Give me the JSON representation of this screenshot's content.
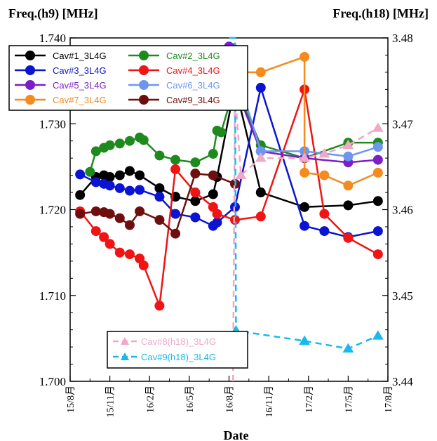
{
  "chart_data": {
    "type": "line",
    "title": "",
    "ylabel_left": "Freq.(h9)  [MHz]",
    "ylabel_right": "Freq.(h18)  [MHz]",
    "xlabel": "Date",
    "x_ticks": [
      "15/8月",
      "15/11月",
      "16/2月",
      "16/5月",
      "16/8月",
      "16/11月",
      "17/2月",
      "17/5月",
      "17/8月"
    ],
    "x_range": [
      "2015-08",
      "2017-08"
    ],
    "ylim_left": [
      1.7,
      1.74
    ],
    "yticks_left": [
      "1.700",
      "1.710",
      "1.720",
      "1.730",
      "1.740"
    ],
    "ylim_right": [
      3.44,
      3.48
    ],
    "yticks_right": [
      "3.44",
      "3.45",
      "3.46",
      "3.47",
      "3.48"
    ],
    "legend_top": {
      "position": "top-left"
    },
    "legend_bottom": {
      "position": "bottom-center"
    },
    "series": [
      {
        "name": "Cav#1_3L4G",
        "axis": "left",
        "color": "#000000",
        "marker": "circle",
        "dashed": false,
        "x": [
          0.5,
          1.3,
          1.7,
          2.0,
          2.5,
          3.0,
          3.5,
          4.5,
          5.3,
          6.3,
          7.2,
          7.4,
          8.3,
          9.6,
          11.8,
          14.0,
          15.5
        ],
        "y": [
          1.7217,
          1.7238,
          1.724,
          1.7238,
          1.724,
          1.7245,
          1.724,
          1.7225,
          1.7215,
          1.721,
          1.7218,
          1.7238,
          1.7345,
          1.722,
          1.7203,
          1.7205,
          1.721
        ]
      },
      {
        "name": "Cav#2_3L4G",
        "axis": "left",
        "color": "#1e8a1e",
        "marker": "circle",
        "dashed": false,
        "x": [
          1.0,
          1.3,
          1.7,
          2.0,
          2.5,
          3.0,
          3.5,
          3.7,
          4.5,
          5.3,
          6.3,
          7.2,
          7.4,
          7.6,
          8.3,
          9.6,
          11.8,
          14.0,
          15.5
        ],
        "y": [
          1.7244,
          1.7268,
          1.7272,
          1.7275,
          1.7277,
          1.728,
          1.7284,
          1.7281,
          1.7263,
          1.7258,
          1.7255,
          1.7265,
          1.7292,
          1.729,
          1.7345,
          1.7275,
          1.726,
          1.7278,
          1.7278
        ]
      },
      {
        "name": "Cav#3_3L4G",
        "axis": "left",
        "color": "#0a14d2",
        "marker": "circle",
        "dashed": false,
        "x": [
          0.5,
          1.3,
          1.7,
          2.0,
          2.5,
          3.0,
          3.5,
          4.5,
          5.3,
          6.3,
          7.2,
          7.4,
          8.3,
          9.6,
          11.8,
          12.8,
          14.0,
          15.5
        ],
        "y": [
          1.7241,
          1.7232,
          1.723,
          1.7228,
          1.7225,
          1.7222,
          1.7223,
          1.7215,
          1.7195,
          1.7191,
          1.7181,
          1.7185,
          1.7203,
          1.7342,
          1.7181,
          1.7175,
          1.7168,
          1.7175
        ]
      },
      {
        "name": "Cav#4_3L4G",
        "axis": "left",
        "color": "#f01414",
        "marker": "circle",
        "dashed": false,
        "x": [
          0.5,
          1.3,
          1.7,
          2.0,
          2.5,
          3.0,
          3.5,
          3.7,
          4.5,
          5.3,
          6.3,
          7.2,
          7.4,
          8.3,
          9.6,
          11.8,
          12.8,
          14.0,
          15.5
        ],
        "y": [
          1.7198,
          1.7175,
          1.7168,
          1.716,
          1.715,
          1.7148,
          1.7143,
          1.7135,
          1.7088,
          1.7247,
          1.722,
          1.7203,
          1.7195,
          1.7188,
          1.7192,
          1.734,
          1.7195,
          1.7167,
          1.7148
        ]
      },
      {
        "name": "Cav#5_3L4G",
        "axis": "left",
        "color": "#7a1fc8",
        "marker": "circle",
        "dashed": false,
        "x": [
          8.0,
          8.2,
          8.3,
          9.6,
          11.8,
          14.0,
          15.5
        ],
        "y": [
          1.739,
          1.7388,
          1.7344,
          1.7268,
          1.726,
          1.7255,
          1.7258
        ]
      },
      {
        "name": "Cav#6_3L4G",
        "axis": "left",
        "color": "#6e96f0",
        "marker": "circle",
        "dashed": false,
        "x": [
          8.0,
          8.2,
          8.3,
          9.6,
          11.8,
          14.0,
          15.5
        ],
        "y": [
          1.7378,
          1.7372,
          1.7365,
          1.7268,
          1.7268,
          1.7262,
          1.7273
        ]
      },
      {
        "name": "Cav#7_3L4G",
        "axis": "left",
        "color": "#f58a1e",
        "marker": "circle",
        "dashed": false,
        "x": [
          8.0,
          8.2,
          8.3,
          9.6,
          11.8,
          11.8,
          12.8,
          14.0,
          15.5
        ],
        "y": [
          1.7365,
          1.7355,
          1.736,
          1.736,
          1.7378,
          1.7243,
          1.724,
          1.7228,
          1.7243
        ]
      },
      {
        "name": "Cav#9_3L4G",
        "axis": "left",
        "color": "#6e0f0f",
        "marker": "circle",
        "dashed": false,
        "x": [
          0.5,
          1.3,
          1.7,
          2.0,
          2.5,
          3.0,
          3.5,
          4.5,
          5.3,
          6.3,
          7.2,
          8.3
        ],
        "y": [
          1.7195,
          1.7198,
          1.7197,
          1.7195,
          1.719,
          1.7182,
          1.7198,
          1.7188,
          1.7172,
          1.7242,
          1.724,
          1.723
        ]
      },
      {
        "name": "Cav#8(h18)_3L4G",
        "axis": "right",
        "color": "#f0a8c8",
        "marker": "triangle",
        "dashed": true,
        "x": [
          8.2,
          8.3,
          8.6,
          9.6,
          11.8,
          12.8,
          14.0,
          15.5
        ],
        "y": [
          3.44,
          3.474,
          3.464,
          3.466,
          3.466,
          3.4665,
          3.4675,
          3.4695
        ]
      },
      {
        "name": "Cav#9(h18)_3L4G",
        "axis": "right",
        "color": "#19b9ec",
        "marker": "triangle",
        "dashed": true,
        "x": [
          8.0,
          8.3,
          8.35,
          11.8,
          14.0,
          15.5
        ],
        "y": [
          3.48,
          3.48,
          3.4459,
          3.4447,
          3.4438,
          3.4453
        ]
      }
    ]
  }
}
